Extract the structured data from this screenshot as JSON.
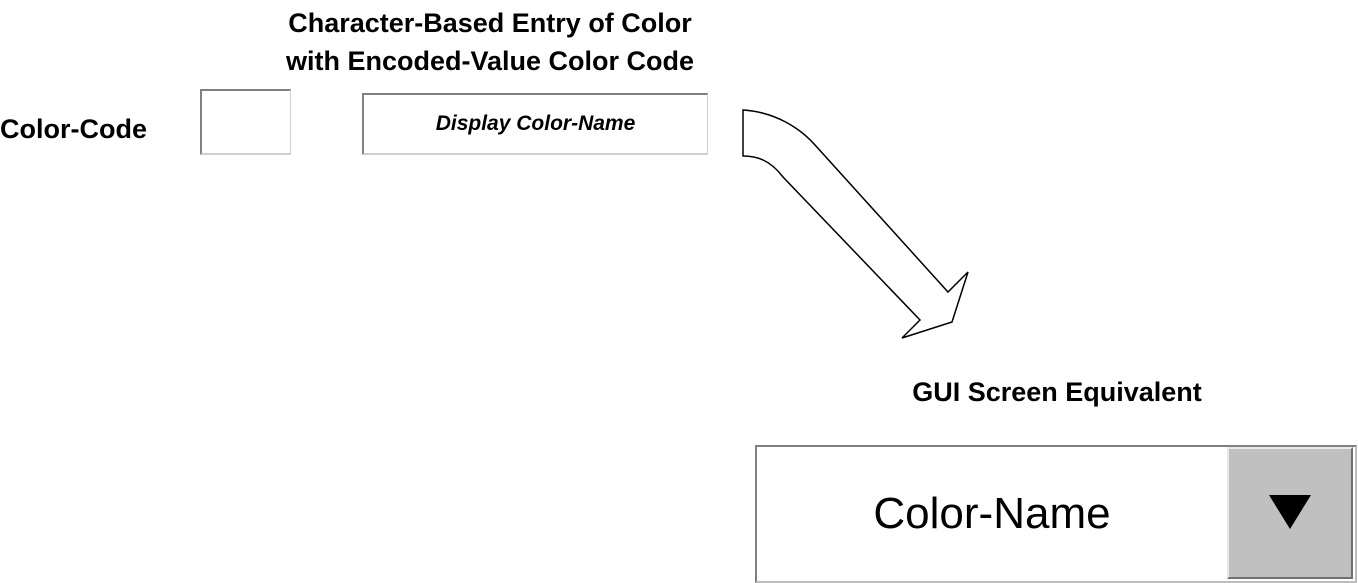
{
  "title": {
    "line1": "Character-Based Entry of Color",
    "line2": "with Encoded-Value Color Code"
  },
  "character_form": {
    "code_label": "Color-Code",
    "code_value": "",
    "display_text": "Display Color-Name"
  },
  "gui": {
    "label": "GUI Screen Equivalent",
    "selected_value": "Color-Name",
    "dropdown_icon": "triangle-down-icon"
  },
  "colors": {
    "combo_button_bg": "#c0c0c0",
    "arrow_stroke": "#000000",
    "arrow_fill": "#ffffff"
  }
}
